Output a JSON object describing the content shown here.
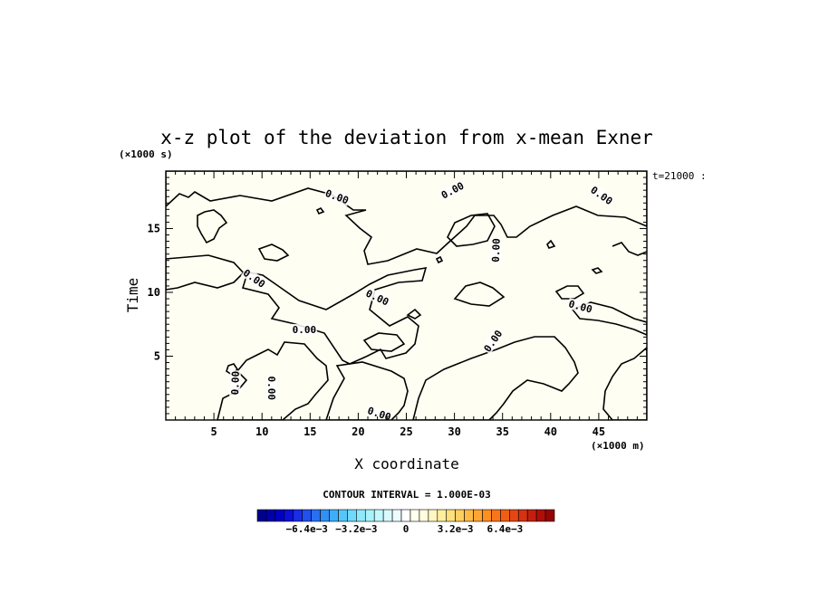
{
  "chart_data": {
    "type": "contour",
    "title": "x-z plot of the deviation from x-mean Exner",
    "xlabel": "X coordinate",
    "ylabel": "Time",
    "x_unit": "(×1000 m)",
    "y_unit": "(×1000 s)",
    "time_label": "t=21000 :",
    "xlim": [
      0,
      50
    ],
    "ylim": [
      0,
      19.5
    ],
    "x_ticks": [
      5,
      10,
      15,
      20,
      25,
      30,
      35,
      40,
      45
    ],
    "y_ticks": [
      5,
      10,
      15
    ],
    "x_minor_step": 1,
    "y_minor_step": 0.5,
    "contour_interval_label": "CONTOUR INTERVAL = 1.000E-03",
    "contour_line_label": "0.00",
    "contour_labels": [
      {
        "text": "0.00",
        "x": 17.8,
        "y": 17.5,
        "angle": 20
      },
      {
        "text": "0.00",
        "x": 29.8,
        "y": 18.0,
        "angle": -28
      },
      {
        "text": "0.00",
        "x": 45.3,
        "y": 17.6,
        "angle": 35
      },
      {
        "text": "0.00",
        "x": 34.3,
        "y": 13.3,
        "angle": -88
      },
      {
        "text": "0.00",
        "x": 9.2,
        "y": 11.1,
        "angle": 35
      },
      {
        "text": "0.00",
        "x": 22.0,
        "y": 9.6,
        "angle": 25
      },
      {
        "text": "0.00",
        "x": 43.1,
        "y": 8.9,
        "angle": 15
      },
      {
        "text": "0.00",
        "x": 14.4,
        "y": 7.1,
        "angle": 0
      },
      {
        "text": "0.00",
        "x": 34.0,
        "y": 6.2,
        "angle": -55
      },
      {
        "text": "0.00",
        "x": 7.2,
        "y": 2.9,
        "angle": -88
      },
      {
        "text": "0.00",
        "x": 11.0,
        "y": 2.5,
        "angle": 90
      },
      {
        "text": "0.00",
        "x": 22.2,
        "y": 0.5,
        "angle": 18
      }
    ],
    "colorbar": {
      "tick_labels": [
        "−6.4e−3",
        "−3.2e−3",
        "0",
        "3.2e−3",
        "6.4e−3"
      ],
      "tick_values": [
        -0.0064,
        -0.0032,
        0,
        0.0032,
        0.0064
      ],
      "min": -0.0096,
      "max": 0.0096,
      "levels": 33,
      "colors": [
        "#00008f",
        "#0000a8",
        "#0000c2",
        "#0d10d8",
        "#1a2ee6",
        "#2050ee",
        "#2870f2",
        "#3090f5",
        "#3fadf7",
        "#56c6f8",
        "#70dafa",
        "#8ee9fb",
        "#a8f2fc",
        "#c2f8fd",
        "#daf9fc",
        "#ecfcfe",
        "#ffffff",
        "#fffff0",
        "#fffde0",
        "#fff6c0",
        "#ffee9e",
        "#ffe07e",
        "#ffcf60",
        "#ffbb46",
        "#ffa531",
        "#fd8e22",
        "#f87619",
        "#f05e14",
        "#e44712",
        "#d53210",
        "#c41f0c",
        "#ae1008",
        "#960505"
      ]
    },
    "fill_colors": {
      "negative": "#edfcfc",
      "positive": "#fefef2"
    }
  }
}
